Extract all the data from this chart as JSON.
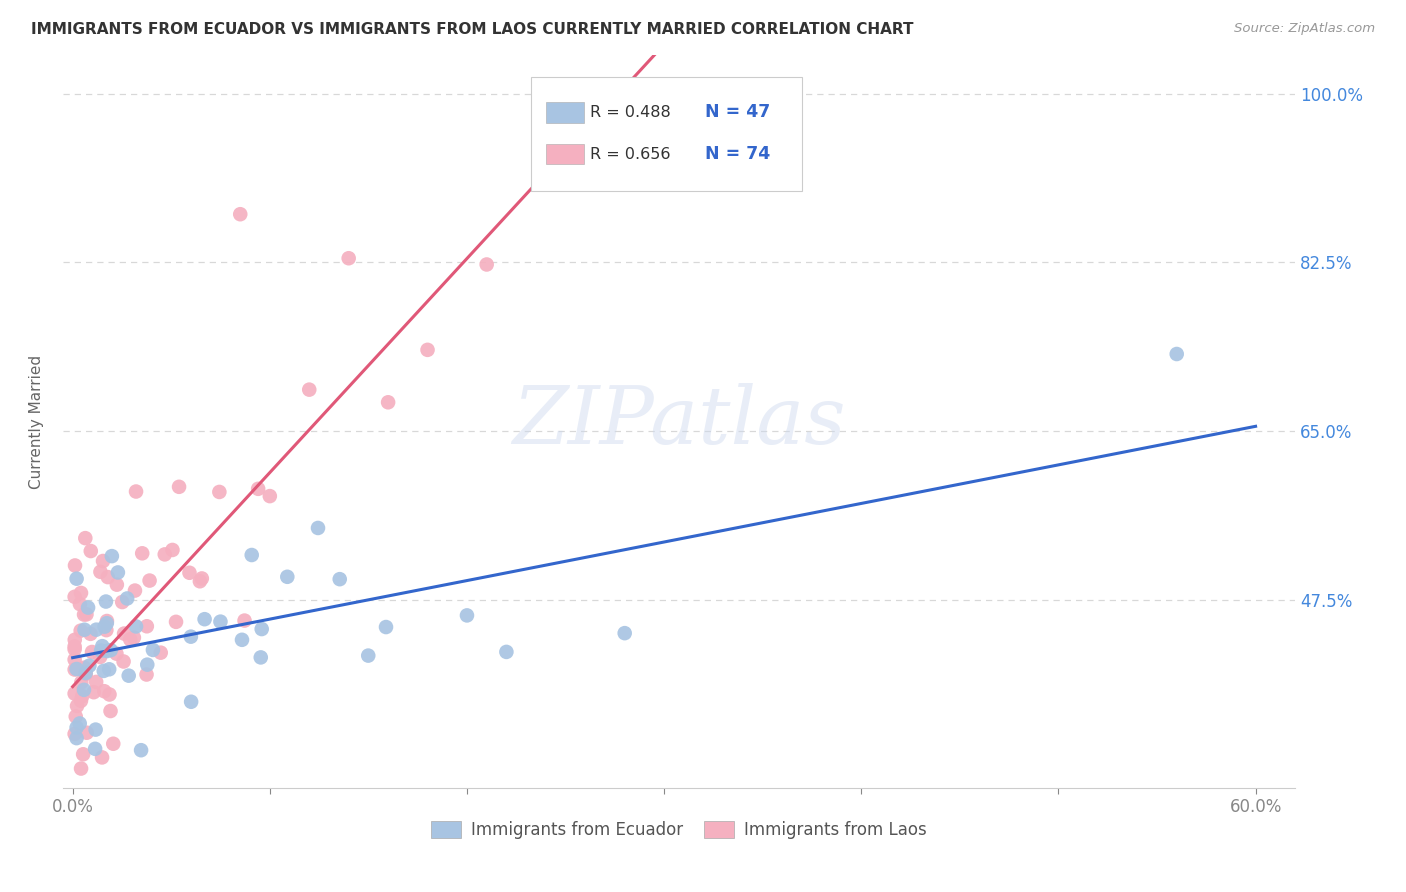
{
  "title": "IMMIGRANTS FROM ECUADOR VS IMMIGRANTS FROM LAOS CURRENTLY MARRIED CORRELATION CHART",
  "source": "Source: ZipAtlas.com",
  "x_tick_positions": [
    0.0,
    0.1,
    0.2,
    0.3,
    0.4,
    0.5,
    0.6
  ],
  "x_tick_labels_show": [
    "0.0%",
    "",
    "",
    "",
    "",
    "",
    "60.0%"
  ],
  "ylabel_ticks_vals": [
    1.0,
    0.825,
    0.65,
    0.475
  ],
  "ylabel_ticks_labels": [
    "100.0%",
    "82.5%",
    "65.0%",
    "47.5%"
  ],
  "ylabel_label": "Currently Married",
  "xlim": [
    -0.005,
    0.62
  ],
  "ylim": [
    0.28,
    1.04
  ],
  "ecuador_R": 0.488,
  "ecuador_N": 47,
  "laos_R": 0.656,
  "laos_N": 74,
  "ecuador_color": "#a8c4e2",
  "laos_color": "#f5b0c0",
  "ecuador_line_color": "#3366cc",
  "laos_line_color": "#e05878",
  "watermark_text": "ZIPatlas",
  "legend_ecuador": "Immigrants from Ecuador",
  "legend_laos": "Immigrants from Laos",
  "background_color": "#ffffff",
  "grid_color": "#d8d8d8",
  "ec_line_x0": 0.0,
  "ec_line_y0": 0.415,
  "ec_line_x1": 0.6,
  "ec_line_y1": 0.655,
  "la_line_x0": 0.0,
  "la_line_y0": 0.385,
  "la_line_x1": 0.295,
  "la_line_y1": 1.04
}
